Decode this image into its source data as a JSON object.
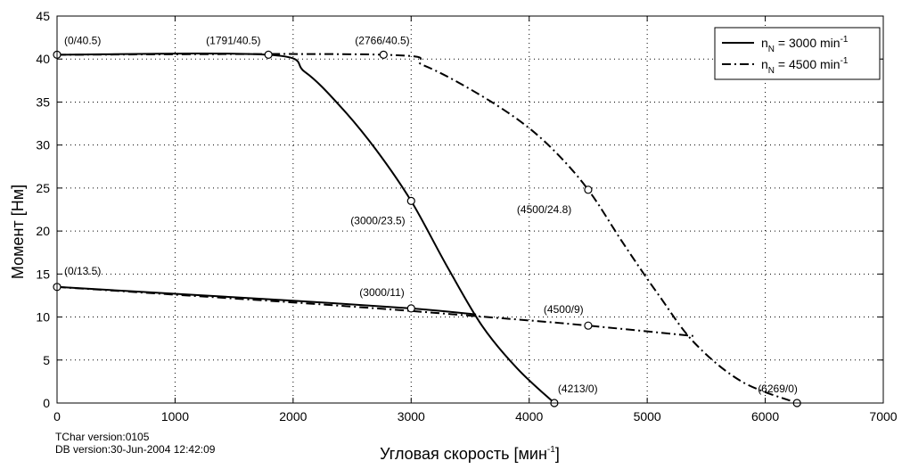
{
  "chart_data": {
    "type": "line",
    "xlabel": "Угловая скорость [мин",
    "xlabel_sup": "-1",
    "xlabel_end": "]",
    "ylabel": "Момент [Нм]",
    "xlim": [
      0,
      7000
    ],
    "ylim": [
      0,
      45
    ],
    "xticks": [
      0,
      1000,
      2000,
      3000,
      4000,
      5000,
      6000,
      7000
    ],
    "yticks": [
      0,
      5,
      10,
      15,
      20,
      25,
      30,
      35,
      40,
      45
    ],
    "grid": true,
    "legend_position": "top-right",
    "series": [
      {
        "name": "n_N = 3000 min^-1",
        "legend_main": "n",
        "legend_sub": "N",
        "legend_mid": " = 3000 min",
        "legend_sup": "-1",
        "style": "solid",
        "upper": [
          [
            0,
            40.5
          ],
          [
            1791,
            40.5
          ],
          [
            2100,
            38.5
          ],
          [
            2400,
            34.5
          ],
          [
            2700,
            29.5
          ],
          [
            3000,
            23.5
          ],
          [
            3300,
            16
          ],
          [
            3600,
            9
          ],
          [
            3900,
            4
          ],
          [
            4213,
            0
          ]
        ],
        "lower": [
          [
            0,
            13.5
          ],
          [
            1000,
            12.7
          ],
          [
            2000,
            11.9
          ],
          [
            3000,
            11
          ],
          [
            3550,
            10.3
          ]
        ]
      },
      {
        "name": "n_N = 4500 min^-1",
        "legend_main": "n",
        "legend_sub": "N",
        "legend_mid": " = 4500 min",
        "legend_sup": "-1",
        "style": "dashdot",
        "upper": [
          [
            0,
            40.5
          ],
          [
            2766,
            40.5
          ],
          [
            3100,
            39.3
          ],
          [
            3500,
            36.5
          ],
          [
            3900,
            33
          ],
          [
            4200,
            29.5
          ],
          [
            4500,
            24.8
          ],
          [
            4800,
            18.5
          ],
          [
            5100,
            12.5
          ],
          [
            5400,
            7
          ],
          [
            5800,
            2.5
          ],
          [
            6269,
            0
          ]
        ],
        "lower": [
          [
            0,
            13.5
          ],
          [
            1000,
            12.6
          ],
          [
            2000,
            11.7
          ],
          [
            3000,
            10.7
          ],
          [
            4000,
            9.6
          ],
          [
            4500,
            9
          ],
          [
            5390,
            7.8
          ]
        ]
      }
    ],
    "markers": [
      {
        "x": 0,
        "y": 40.5,
        "label": "(0/40.5)",
        "dx": 8,
        "dy": -12,
        "anchor": "start"
      },
      {
        "x": 1791,
        "y": 40.5,
        "label": "(1791/40.5)",
        "dx": -70,
        "dy": -12,
        "anchor": "start"
      },
      {
        "x": 2766,
        "y": 40.5,
        "label": "(2766/40.5)",
        "dx": -32,
        "dy": -12,
        "anchor": "start"
      },
      {
        "x": 3000,
        "y": 23.5,
        "label": "(3000/23.5)",
        "dx": -68,
        "dy": 26,
        "anchor": "start"
      },
      {
        "x": 4500,
        "y": 24.8,
        "label": "(4500/24.8)",
        "dx": -80,
        "dy": 26,
        "anchor": "start"
      },
      {
        "x": 0,
        "y": 13.5,
        "label": "(0/13.5)",
        "dx": 8,
        "dy": -14,
        "anchor": "start"
      },
      {
        "x": 3000,
        "y": 11,
        "label": "(3000/11)",
        "dx": -58,
        "dy": -14,
        "anchor": "start"
      },
      {
        "x": 4500,
        "y": 9,
        "label": "(4500/9)",
        "dx": -50,
        "dy": -14,
        "anchor": "start"
      },
      {
        "x": 4213,
        "y": 0,
        "label": "(4213/0)",
        "dx": 4,
        "dy": -12,
        "anchor": "start"
      },
      {
        "x": 6269,
        "y": 0,
        "label": "(6269/0)",
        "dx": -44,
        "dy": -12,
        "anchor": "start"
      }
    ]
  },
  "footer": {
    "tchar_version": "TChar version:0105",
    "db_version": "DB version:30-Jun-2004 12:42:09"
  }
}
